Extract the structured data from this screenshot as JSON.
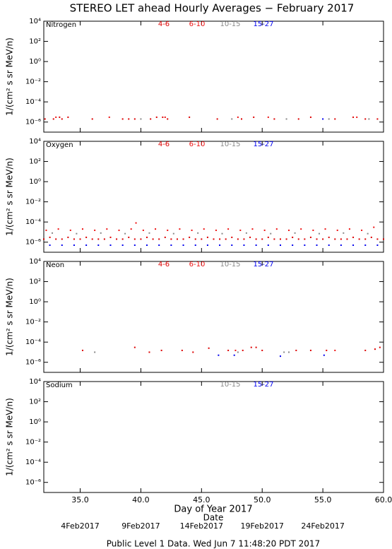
{
  "title": "STEREO LET ahead Hourly Averages − February 2017",
  "footer": "Public Level 1 Data. Wed Jun  7 11:48:20 PDT 2017",
  "xlabel": "Day of Year 2017",
  "date_label": "Date",
  "date_ticks": [
    {
      "value": 35,
      "label": "4Feb2017"
    },
    {
      "value": 40,
      "label": "9Feb2017"
    },
    {
      "value": 45,
      "label": "14Feb2017"
    },
    {
      "value": 50,
      "label": "19Feb2017"
    },
    {
      "value": 55,
      "label": "24Feb2017"
    }
  ],
  "chart_data": [
    {
      "type": "scatter",
      "title": "Nitrogen",
      "ylabel": "1/(cm² s sr MeV/n)",
      "log_y": true,
      "xlim": [
        32,
        60
      ],
      "ylim": [
        1e-07,
        10000
      ],
      "xticks": [
        {
          "value": 35,
          "label": "35.0"
        },
        {
          "value": 40,
          "label": "40.0"
        },
        {
          "value": 45,
          "label": "45.0"
        },
        {
          "value": 50,
          "label": "50.0"
        },
        {
          "value": 55,
          "label": "55.0"
        },
        {
          "value": 60,
          "label": "60.0"
        }
      ],
      "yticks": [
        {
          "value": 10000,
          "label": "10⁴"
        },
        {
          "value": 100,
          "label": "10²"
        },
        {
          "value": 1,
          "label": "10⁰"
        },
        {
          "value": 0.01,
          "label": "10⁻²"
        },
        {
          "value": 0.0001,
          "label": "10⁻⁴"
        },
        {
          "value": 1e-06,
          "label": "10⁻⁶"
        }
      ],
      "series": [
        {
          "name": "4-6",
          "color": "#dd0000",
          "x": [
            32.1,
            32.8,
            33.3,
            33.5,
            34.0,
            36.0,
            38.5,
            39.0,
            39.5,
            40.8,
            41.3,
            41.8,
            42.2,
            44.0,
            46.3,
            48.3,
            49.3,
            51.0,
            53.0,
            54.0,
            56.0,
            57.5,
            58.5,
            59.5
          ],
          "values": [
            2e-06,
            2e-06,
            3e-06,
            2e-06,
            3e-06,
            2e-06,
            2e-06,
            2e-06,
            2e-06,
            2e-06,
            3e-06,
            3e-06,
            2e-06,
            3e-06,
            2e-06,
            2e-06,
            3e-06,
            2e-06,
            2e-06,
            3e-06,
            2e-06,
            3e-06,
            2e-06,
            2e-06
          ]
        },
        {
          "name": "6-10",
          "color": "#ee1111",
          "x": [
            33.0,
            37.4,
            42.0,
            48.0,
            50.5,
            57.8
          ],
          "values": [
            3e-06,
            3e-06,
            3e-06,
            3e-06,
            3e-06,
            3e-06
          ]
        },
        {
          "name": "10-15",
          "color": "#888888",
          "x": [
            40.0,
            47.5,
            52.0,
            55.5,
            58.8
          ],
          "values": [
            2e-06,
            2e-06,
            2e-06,
            2e-06,
            2e-06
          ]
        },
        {
          "name": "15-27",
          "color": "#0000ee",
          "x": [
            55.0
          ],
          "values": [
            2e-06
          ]
        }
      ]
    },
    {
      "type": "scatter",
      "title": "Oxygen",
      "ylabel": "1/(cm² s sr MeV/n)",
      "log_y": true,
      "xlim": [
        32,
        60
      ],
      "ylim": [
        1e-07,
        10000
      ],
      "xticks": [
        {
          "value": 35,
          "label": "35.0"
        },
        {
          "value": 40,
          "label": "40.0"
        },
        {
          "value": 45,
          "label": "45.0"
        },
        {
          "value": 50,
          "label": "50.0"
        },
        {
          "value": 55,
          "label": "55.0"
        },
        {
          "value": 60,
          "label": "60.0"
        }
      ],
      "yticks": [
        {
          "value": 10000,
          "label": "10⁴"
        },
        {
          "value": 100,
          "label": "10²"
        },
        {
          "value": 1,
          "label": "10⁰"
        },
        {
          "value": 0.01,
          "label": "10⁻²"
        },
        {
          "value": 0.0001,
          "label": "10⁻⁴"
        },
        {
          "value": 1e-06,
          "label": "10⁻⁶"
        }
      ],
      "series": [
        {
          "name": "4-6",
          "color": "#dd0000",
          "x": [
            32.0,
            32.5,
            33.0,
            33.5,
            34.0,
            34.5,
            35.0,
            35.5,
            36.0,
            36.5,
            37.0,
            37.5,
            38.0,
            38.5,
            39.0,
            39.5,
            40.0,
            40.5,
            41.0,
            41.5,
            42.0,
            42.5,
            43.0,
            43.5,
            44.0,
            44.5,
            45.0,
            45.5,
            46.0,
            46.5,
            47.0,
            47.5,
            48.0,
            48.5,
            49.0,
            49.5,
            50.0,
            50.5,
            51.0,
            51.5,
            52.0,
            52.5,
            53.0,
            53.5,
            54.0,
            54.5,
            55.0,
            55.5,
            56.0,
            56.5,
            57.0,
            57.5,
            58.0,
            58.5,
            59.0,
            59.5,
            60.0
          ],
          "values": [
            2e-06,
            3e-06,
            2e-06,
            2e-06,
            3e-06,
            2e-06,
            2e-06,
            3e-06,
            2e-06,
            2e-06,
            2e-06,
            3e-06,
            2e-06,
            2e-06,
            3e-06,
            2e-06,
            2e-06,
            3e-06,
            2e-06,
            2e-06,
            3e-06,
            2e-06,
            2e-06,
            2e-06,
            3e-06,
            2e-06,
            2e-06,
            3e-06,
            2e-06,
            2e-06,
            2e-06,
            3e-06,
            2e-06,
            2e-06,
            3e-06,
            2e-06,
            2e-06,
            3e-06,
            2e-06,
            2e-06,
            2e-06,
            3e-06,
            2e-06,
            2e-06,
            3e-06,
            2e-06,
            2e-06,
            3e-06,
            2e-06,
            2e-06,
            2e-06,
            3e-06,
            2e-06,
            2e-06,
            3e-06,
            2e-06,
            2e-06
          ]
        },
        {
          "name": "6-10",
          "color": "#ee1111",
          "x": [
            32.2,
            33.2,
            34.2,
            35.2,
            36.2,
            37.2,
            38.2,
            39.2,
            39.6,
            40.2,
            41.2,
            42.2,
            43.2,
            44.2,
            45.2,
            46.2,
            47.2,
            48.2,
            49.2,
            50.2,
            51.2,
            52.2,
            53.2,
            54.2,
            55.2,
            56.2,
            57.2,
            58.2,
            59.2
          ],
          "values": [
            1.5e-05,
            2e-05,
            1.5e-05,
            2e-05,
            1.5e-05,
            2e-05,
            1.5e-05,
            2e-05,
            8e-05,
            1.5e-05,
            2e-05,
            1.5e-05,
            2e-05,
            1.5e-05,
            2e-05,
            1.5e-05,
            2e-05,
            1.5e-05,
            2e-05,
            1.5e-05,
            2e-05,
            1.5e-05,
            2e-05,
            1.5e-05,
            2e-05,
            1.5e-05,
            2e-05,
            1.5e-05,
            3e-05
          ]
        },
        {
          "name": "10-15",
          "color": "#888888",
          "x": [
            32.7,
            34.7,
            36.7,
            38.7,
            40.7,
            42.7,
            44.7,
            46.7,
            48.7,
            50.7,
            52.7,
            54.7,
            56.7,
            58.7
          ],
          "values": [
            8e-06,
            7e-06,
            8e-06,
            7e-06,
            8e-06,
            7e-06,
            8e-06,
            7e-06,
            8e-06,
            7e-06,
            8e-06,
            7e-06,
            8e-06,
            7e-06
          ]
        },
        {
          "name": "15-27",
          "color": "#0000ee",
          "x": [
            32.5,
            33.5,
            34.5,
            35.5,
            36.5,
            37.5,
            38.5,
            39.5,
            40.5,
            41.5,
            42.5,
            43.5,
            44.5,
            45.5,
            46.5,
            47.5,
            48.5,
            49.5,
            50.5,
            51.5,
            52.5,
            53.5,
            54.5,
            55.5,
            56.5,
            57.5,
            58.5,
            59.5
          ],
          "values": [
            5e-07,
            5e-07,
            5e-07,
            5e-07,
            5e-07,
            5e-07,
            5e-07,
            5e-07,
            5e-07,
            5e-07,
            5e-07,
            5e-07,
            5e-07,
            5e-07,
            5e-07,
            5e-07,
            5e-07,
            5e-07,
            5e-07,
            5e-07,
            5e-07,
            5e-07,
            5e-07,
            5e-07,
            5e-07,
            5e-07,
            5e-07,
            5e-07
          ]
        }
      ]
    },
    {
      "type": "scatter",
      "title": "Neon",
      "ylabel": "1/(cm² s sr MeV/n)",
      "log_y": true,
      "xlim": [
        32,
        60
      ],
      "ylim": [
        1e-07,
        10000
      ],
      "xticks": [
        {
          "value": 35,
          "label": "35.0"
        },
        {
          "value": 40,
          "label": "40.0"
        },
        {
          "value": 45,
          "label": "45.0"
        },
        {
          "value": 50,
          "label": "50.0"
        },
        {
          "value": 55,
          "label": "55.0"
        },
        {
          "value": 60,
          "label": "60.0"
        }
      ],
      "yticks": [
        {
          "value": 10000,
          "label": "10⁴"
        },
        {
          "value": 100,
          "label": "10²"
        },
        {
          "value": 1,
          "label": "10⁰"
        },
        {
          "value": 0.01,
          "label": "10⁻²"
        },
        {
          "value": 0.0001,
          "label": "10⁻⁴"
        },
        {
          "value": 1e-06,
          "label": "10⁻⁶"
        }
      ],
      "series": [
        {
          "name": "4-6",
          "color": "#dd0000",
          "x": [
            35.2,
            39.5,
            40.7,
            41.7,
            43.4,
            44.3,
            45.6,
            47.2,
            48.4,
            49.1,
            49.5,
            50.0,
            52.8,
            54.0,
            55.3,
            58.5,
            59.3,
            59.7
          ],
          "values": [
            1.5e-05,
            3e-05,
            1e-05,
            1.5e-05,
            1.5e-05,
            1e-05,
            2.5e-05,
            1.5e-05,
            1.5e-05,
            3e-05,
            3e-05,
            1.5e-05,
            1.5e-05,
            1.5e-05,
            1.5e-05,
            1.5e-05,
            2e-05,
            3e-05
          ]
        },
        {
          "name": "6-10",
          "color": "#ee1111",
          "x": [
            47.8,
            56.0
          ],
          "values": [
            1.5e-05,
            1.5e-05
          ]
        },
        {
          "name": "10-15",
          "color": "#888888",
          "x": [
            36.2,
            48.0,
            51.8,
            52.2
          ],
          "values": [
            1e-05,
            1e-05,
            1e-05,
            1e-05
          ]
        },
        {
          "name": "15-27",
          "color": "#0000ee",
          "x": [
            46.4,
            47.7,
            51.5,
            55.1
          ],
          "values": [
            5e-06,
            5e-06,
            4e-06,
            5e-06
          ]
        }
      ]
    },
    {
      "type": "scatter",
      "title": "Sodium",
      "ylabel": "1/(cm² s sr MeV/n)",
      "log_y": true,
      "xlim": [
        32,
        60
      ],
      "ylim": [
        1e-07,
        10000
      ],
      "xticks": [
        {
          "value": 35,
          "label": "35.0"
        },
        {
          "value": 40,
          "label": "40.0"
        },
        {
          "value": 45,
          "label": "45.0"
        },
        {
          "value": 50,
          "label": "50.0"
        },
        {
          "value": 55,
          "label": "55.0"
        },
        {
          "value": 60,
          "label": "60.0"
        }
      ],
      "yticks": [
        {
          "value": 10000,
          "label": "10⁴"
        },
        {
          "value": 100,
          "label": "10²"
        },
        {
          "value": 1,
          "label": "10⁰"
        },
        {
          "value": 0.01,
          "label": "10⁻²"
        },
        {
          "value": 0.0001,
          "label": "10⁻⁴"
        },
        {
          "value": 1e-06,
          "label": "10⁻⁶"
        }
      ],
      "series": [
        {
          "name": "10-15",
          "color": "#888888",
          "x": [],
          "values": []
        },
        {
          "name": "15-27",
          "color": "#0000ee",
          "x": [],
          "values": []
        }
      ]
    }
  ]
}
